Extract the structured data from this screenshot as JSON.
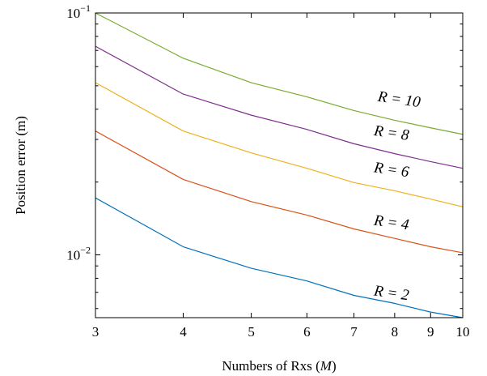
{
  "chart_data": {
    "type": "line",
    "xlabel_text": "Numbers of Rxs",
    "xlabel_symbol": "M",
    "ylabel": "Position error (m)",
    "x_scale": "log",
    "y_scale": "log",
    "xlim": [
      3,
      10
    ],
    "ylim": [
      0.0055,
      0.1
    ],
    "x_ticks": [
      3,
      4,
      5,
      6,
      7,
      8,
      9,
      10
    ],
    "y_ticks": [
      {
        "value": 0.1,
        "base": "10",
        "exp": "−1"
      },
      {
        "value": 0.01,
        "base": "10",
        "exp": "−2"
      }
    ],
    "x": [
      3,
      4,
      5,
      6,
      7,
      8,
      9,
      10
    ],
    "series": [
      {
        "name": "R = 2",
        "color": "#0072bd",
        "values": [
          0.0172,
          0.0108,
          0.0088,
          0.0078,
          0.0068,
          0.0063,
          0.0058,
          0.0055
        ]
      },
      {
        "name": "R = 4",
        "color": "#d95319",
        "values": [
          0.0325,
          0.0205,
          0.0166,
          0.0146,
          0.0128,
          0.0117,
          0.0108,
          0.0102
        ]
      },
      {
        "name": "R = 6",
        "color": "#edb120",
        "values": [
          0.0515,
          0.0325,
          0.0264,
          0.0228,
          0.0199,
          0.0184,
          0.017,
          0.0158
        ]
      },
      {
        "name": "R = 8",
        "color": "#7e2f8e",
        "values": [
          0.0728,
          0.0462,
          0.0378,
          0.033,
          0.0288,
          0.0262,
          0.0243,
          0.0228
        ]
      },
      {
        "name": "R = 10",
        "color": "#77ac30",
        "values": [
          0.1,
          0.065,
          0.0515,
          0.045,
          0.0395,
          0.036,
          0.0335,
          0.0315
        ]
      }
    ],
    "annotations": [
      {
        "text": "R = 2",
        "at_x": 7.9,
        "at_y": 0.00665
      },
      {
        "text": "R = 4",
        "at_x": 7.9,
        "at_y": 0.013
      },
      {
        "text": "R = 6",
        "at_x": 7.9,
        "at_y": 0.0215
      },
      {
        "text": "R = 8",
        "at_x": 7.9,
        "at_y": 0.0305
      },
      {
        "text": "R = 10",
        "at_x": 8.1,
        "at_y": 0.042
      }
    ],
    "grid": false,
    "legend": "none"
  }
}
